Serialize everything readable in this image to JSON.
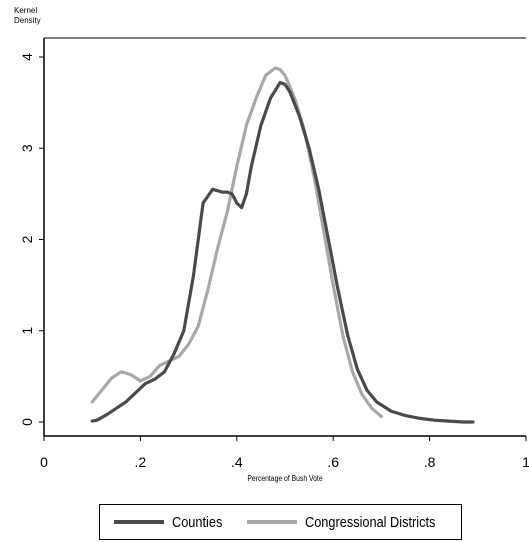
{
  "chart_data": {
    "type": "line",
    "title": "",
    "xlabel": "Percentage of Bush Vote",
    "ylabel_line1": "Kernel",
    "ylabel_line2": "Density",
    "xlim": [
      0,
      1
    ],
    "ylim": [
      0,
      4
    ],
    "x_ticks": [
      "0",
      ".2",
      ".4",
      ".6",
      ".8",
      "1"
    ],
    "y_ticks": [
      "0",
      "1",
      "2",
      "3",
      "4"
    ],
    "grid": false,
    "legend_position": "bottom",
    "series": [
      {
        "name": "Counties",
        "color": "#4a4a4a",
        "x": [
          0.1,
          0.11,
          0.13,
          0.15,
          0.17,
          0.19,
          0.21,
          0.23,
          0.25,
          0.27,
          0.29,
          0.31,
          0.33,
          0.35,
          0.37,
          0.38,
          0.39,
          0.4,
          0.41,
          0.42,
          0.43,
          0.45,
          0.47,
          0.49,
          0.5,
          0.51,
          0.53,
          0.55,
          0.57,
          0.59,
          0.61,
          0.63,
          0.65,
          0.67,
          0.69,
          0.72,
          0.75,
          0.78,
          0.81,
          0.84,
          0.87,
          0.89
        ],
        "y": [
          0.01,
          0.02,
          0.08,
          0.15,
          0.22,
          0.32,
          0.42,
          0.47,
          0.55,
          0.75,
          1.0,
          1.6,
          2.4,
          2.55,
          2.52,
          2.52,
          2.5,
          2.4,
          2.35,
          2.5,
          2.8,
          3.25,
          3.55,
          3.72,
          3.7,
          3.62,
          3.35,
          3.0,
          2.55,
          2.0,
          1.45,
          0.95,
          0.58,
          0.35,
          0.22,
          0.12,
          0.07,
          0.04,
          0.02,
          0.01,
          0.0,
          0.0
        ]
      },
      {
        "name": "Congressional Districts",
        "color": "#a8a8a8",
        "x": [
          0.1,
          0.12,
          0.14,
          0.16,
          0.18,
          0.2,
          0.22,
          0.24,
          0.26,
          0.28,
          0.3,
          0.32,
          0.34,
          0.36,
          0.38,
          0.4,
          0.42,
          0.44,
          0.46,
          0.48,
          0.49,
          0.5,
          0.52,
          0.54,
          0.56,
          0.58,
          0.6,
          0.62,
          0.64,
          0.66,
          0.68,
          0.7
        ],
        "y": [
          0.22,
          0.35,
          0.48,
          0.55,
          0.52,
          0.45,
          0.5,
          0.62,
          0.67,
          0.72,
          0.85,
          1.05,
          1.45,
          1.9,
          2.3,
          2.8,
          3.25,
          3.55,
          3.8,
          3.88,
          3.86,
          3.8,
          3.55,
          3.2,
          2.7,
          2.1,
          1.5,
          0.95,
          0.55,
          0.3,
          0.15,
          0.06
        ]
      }
    ]
  }
}
